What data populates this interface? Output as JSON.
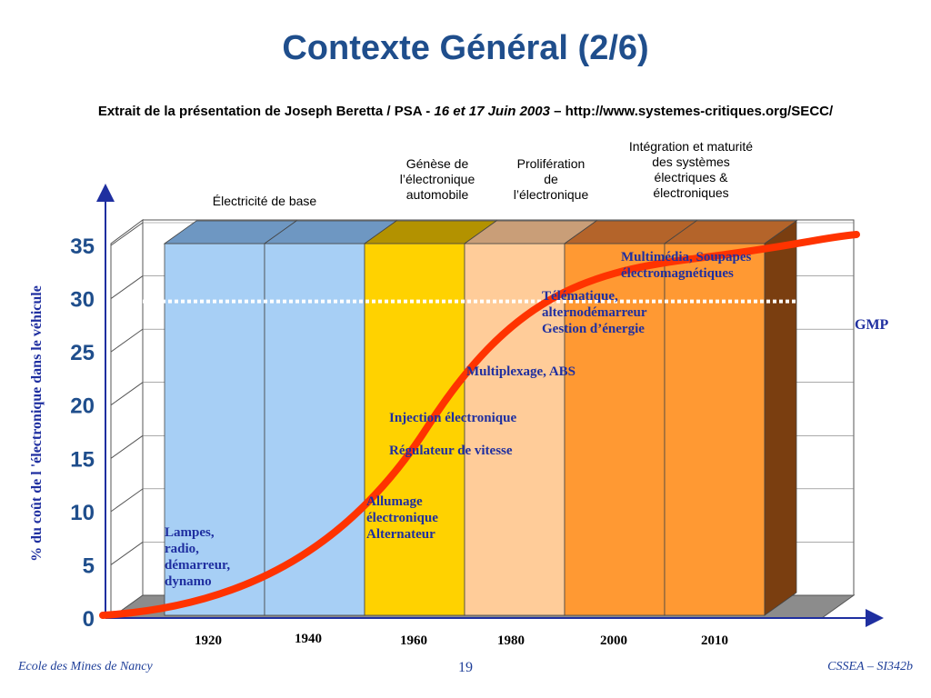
{
  "slide": {
    "title": "Contexte Général (2/6)",
    "subtitle_plain": "Extrait de la présentation de Joseph Beretta / PSA - ",
    "subtitle_italic": "16 et 17 Juin 2003",
    "subtitle_end": " – http://www.systemes-critiques.org/SECC/",
    "footer_left": "Ecole des Mines de Nancy",
    "footer_center": "19",
    "footer_right": "CSSEA – SI342b"
  },
  "chart_data": {
    "type": "area",
    "ylabel": "% du coût de l 'électronique dans le véhicule",
    "ylim": [
      0,
      35
    ],
    "yticks": [
      0,
      5,
      10,
      15,
      20,
      25,
      30,
      35
    ],
    "x_labels": [
      "1920",
      "1940",
      "1960",
      "1980",
      "2000",
      "2010"
    ],
    "gmp_label": "GMP",
    "gmp_level": 30,
    "phases": [
      {
        "label": [
          "Électricité de base"
        ],
        "color": "#a7cff5"
      },
      {
        "label": [
          "Génèse de",
          "l’électronique",
          "automobile"
        ],
        "color": "#ffd200"
      },
      {
        "label": [
          "Prolifération",
          "de",
          "l’électronique"
        ],
        "color": "#ffcc99"
      },
      {
        "label": [
          "Intégration et maturité",
          "des systèmes",
          "électriques &",
          "électroniques"
        ],
        "color": "#ff9933"
      }
    ],
    "annotations": [
      [
        "Lampes,",
        "radio,",
        "démarreur,",
        "dynamo"
      ],
      [
        "Allumage",
        "électronique",
        "Alternateur"
      ],
      [
        "Régulateur de vitesse"
      ],
      [
        "Injection électronique"
      ],
      [
        "Multiplexage, ABS"
      ],
      [
        "Télématique,",
        "alternodémarreur",
        "Gestion d’énergie"
      ],
      [
        "Multimédia, Soupapes",
        "électromagnétiques"
      ]
    ]
  }
}
